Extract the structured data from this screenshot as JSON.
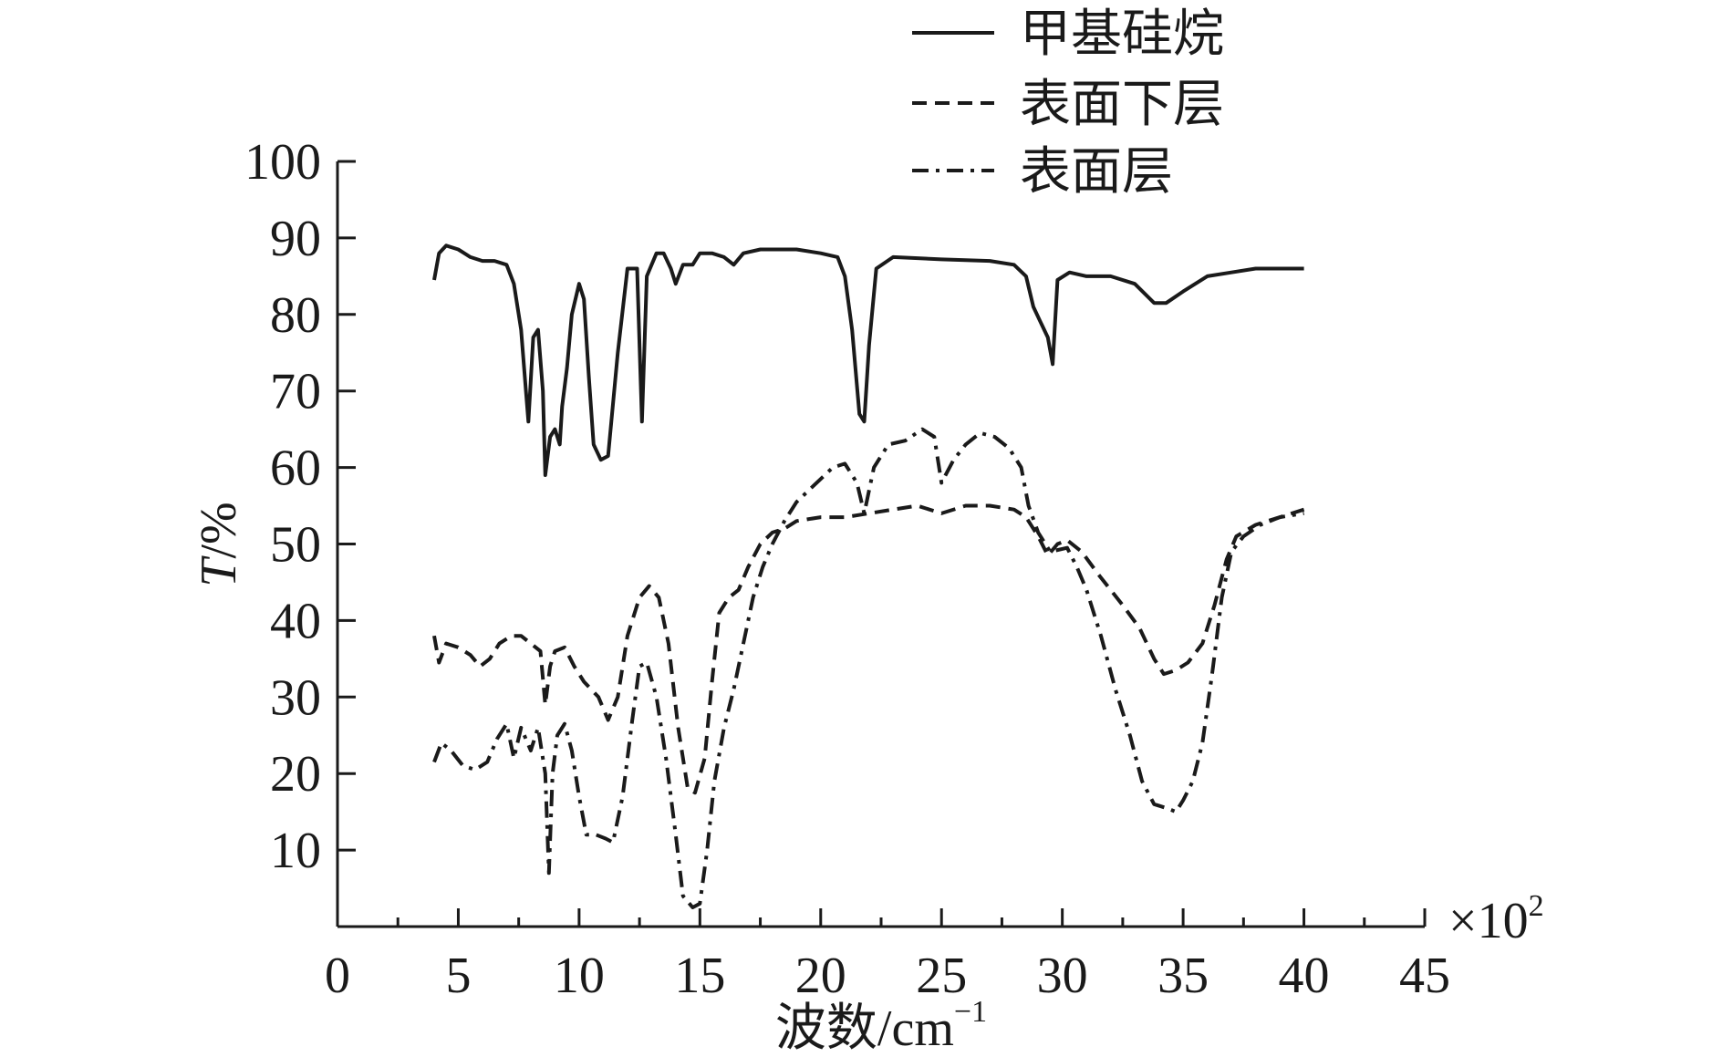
{
  "chart_data": {
    "type": "line",
    "title": "",
    "xlabel": "波数/cm",
    "xlabel_sup": "−1",
    "x_multiplier": "×10",
    "x_multiplier_sup": "2",
    "ylabel_italic": "T",
    "ylabel_rest": "/%",
    "xlim": [
      0,
      45
    ],
    "ylim": [
      0,
      100
    ],
    "xticks": [
      0,
      5,
      10,
      15,
      20,
      25,
      30,
      35,
      40,
      45
    ],
    "yticks": [
      10,
      20,
      30,
      40,
      50,
      60,
      70,
      80,
      90,
      100
    ],
    "grid": false,
    "legend_position": "top-right",
    "series": [
      {
        "name": "甲基硅烷",
        "style": "solid",
        "color": "#1a1a1a",
        "points": [
          [
            4.0,
            84.5
          ],
          [
            4.2,
            88.0
          ],
          [
            4.5,
            89.0
          ],
          [
            5.0,
            88.5
          ],
          [
            5.5,
            87.5
          ],
          [
            6.0,
            87.0
          ],
          [
            6.5,
            87.0
          ],
          [
            7.0,
            86.5
          ],
          [
            7.3,
            84.0
          ],
          [
            7.6,
            78.0
          ],
          [
            7.8,
            70.0
          ],
          [
            7.9,
            66.0
          ],
          [
            8.1,
            77.0
          ],
          [
            8.3,
            78.0
          ],
          [
            8.5,
            70.0
          ],
          [
            8.6,
            59.0
          ],
          [
            8.8,
            64.0
          ],
          [
            9.0,
            65.0
          ],
          [
            9.2,
            63.0
          ],
          [
            9.3,
            68.0
          ],
          [
            9.5,
            73.0
          ],
          [
            9.7,
            80.0
          ],
          [
            10.0,
            84.0
          ],
          [
            10.2,
            82.0
          ],
          [
            10.4,
            72.0
          ],
          [
            10.6,
            63.0
          ],
          [
            10.9,
            61.0
          ],
          [
            11.2,
            61.5
          ],
          [
            11.6,
            75.0
          ],
          [
            12.0,
            86.0
          ],
          [
            12.4,
            86.0
          ],
          [
            12.6,
            66.0
          ],
          [
            12.8,
            85.0
          ],
          [
            13.2,
            88.0
          ],
          [
            13.5,
            88.0
          ],
          [
            13.8,
            86.0
          ],
          [
            14.0,
            84.0
          ],
          [
            14.3,
            86.5
          ],
          [
            14.7,
            86.5
          ],
          [
            15.0,
            88.0
          ],
          [
            15.5,
            88.0
          ],
          [
            16.0,
            87.5
          ],
          [
            16.4,
            86.5
          ],
          [
            16.8,
            88.0
          ],
          [
            17.5,
            88.5
          ],
          [
            19.0,
            88.5
          ],
          [
            20.0,
            88.0
          ],
          [
            20.7,
            87.5
          ],
          [
            21.0,
            85.0
          ],
          [
            21.3,
            78.0
          ],
          [
            21.6,
            67.0
          ],
          [
            21.8,
            66.0
          ],
          [
            22.0,
            76.0
          ],
          [
            22.3,
            86.0
          ],
          [
            23.0,
            87.5
          ],
          [
            25.0,
            87.2
          ],
          [
            27.0,
            87.0
          ],
          [
            28.0,
            86.5
          ],
          [
            28.5,
            85.0
          ],
          [
            28.8,
            81.0
          ],
          [
            29.1,
            79.0
          ],
          [
            29.4,
            77.0
          ],
          [
            29.6,
            73.5
          ],
          [
            29.8,
            84.5
          ],
          [
            30.3,
            85.5
          ],
          [
            31.0,
            85.0
          ],
          [
            32.0,
            85.0
          ],
          [
            33.0,
            84.0
          ],
          [
            33.8,
            81.5
          ],
          [
            34.3,
            81.5
          ],
          [
            35.0,
            83.0
          ],
          [
            36.0,
            85.0
          ],
          [
            37.0,
            85.5
          ],
          [
            38.0,
            86.0
          ],
          [
            40.0,
            86.0
          ]
        ]
      },
      {
        "name": "表面下层",
        "style": "dashed",
        "color": "#1a1a1a",
        "points": [
          [
            4.0,
            38.0
          ],
          [
            4.2,
            34.5
          ],
          [
            4.5,
            37.0
          ],
          [
            5.0,
            36.5
          ],
          [
            5.5,
            35.5
          ],
          [
            5.9,
            34.0
          ],
          [
            6.3,
            35.0
          ],
          [
            6.7,
            37.0
          ],
          [
            7.2,
            38.0
          ],
          [
            7.6,
            38.0
          ],
          [
            8.0,
            37.0
          ],
          [
            8.4,
            36.0
          ],
          [
            8.6,
            29.0
          ],
          [
            8.8,
            34.0
          ],
          [
            9.0,
            36.0
          ],
          [
            9.4,
            36.5
          ],
          [
            9.8,
            34.0
          ],
          [
            10.2,
            32.0
          ],
          [
            10.8,
            30.0
          ],
          [
            11.2,
            27.0
          ],
          [
            11.6,
            30.0
          ],
          [
            12.0,
            38.0
          ],
          [
            12.5,
            43.0
          ],
          [
            12.9,
            44.5
          ],
          [
            13.3,
            43.0
          ],
          [
            13.7,
            37.0
          ],
          [
            14.1,
            26.0
          ],
          [
            14.5,
            18.0
          ],
          [
            14.8,
            17.5
          ],
          [
            15.2,
            22.0
          ],
          [
            15.5,
            32.0
          ],
          [
            15.8,
            41.0
          ],
          [
            16.2,
            43.0
          ],
          [
            16.6,
            44.0
          ],
          [
            17.0,
            47.0
          ],
          [
            17.5,
            50.0
          ],
          [
            18.0,
            51.5
          ],
          [
            18.5,
            52.0
          ],
          [
            19.0,
            53.0
          ],
          [
            20.0,
            53.5
          ],
          [
            21.0,
            53.5
          ],
          [
            22.0,
            54.0
          ],
          [
            23.0,
            54.5
          ],
          [
            24.0,
            55.0
          ],
          [
            25.0,
            54.0
          ],
          [
            26.0,
            55.0
          ],
          [
            27.0,
            55.0
          ],
          [
            28.0,
            54.5
          ],
          [
            28.5,
            53.5
          ],
          [
            29.0,
            51.0
          ],
          [
            29.4,
            48.5
          ],
          [
            29.8,
            50.0
          ],
          [
            30.2,
            50.5
          ],
          [
            30.8,
            49.0
          ],
          [
            31.5,
            46.0
          ],
          [
            32.5,
            42.0
          ],
          [
            33.2,
            39.0
          ],
          [
            33.8,
            35.0
          ],
          [
            34.2,
            33.0
          ],
          [
            34.7,
            33.5
          ],
          [
            35.2,
            34.5
          ],
          [
            35.8,
            37.0
          ],
          [
            36.3,
            42.0
          ],
          [
            36.8,
            48.0
          ],
          [
            37.2,
            51.0
          ],
          [
            38.0,
            52.5
          ],
          [
            39.0,
            53.5
          ],
          [
            40.0,
            54.5
          ]
        ]
      },
      {
        "name": "表面层",
        "style": "dashdot",
        "color": "#1a1a1a",
        "points": [
          [
            4.0,
            21.5
          ],
          [
            4.3,
            24.0
          ],
          [
            4.7,
            23.0
          ],
          [
            5.2,
            21.0
          ],
          [
            5.7,
            20.5
          ],
          [
            6.2,
            21.5
          ],
          [
            6.6,
            24.5
          ],
          [
            7.0,
            26.5
          ],
          [
            7.3,
            22.0
          ],
          [
            7.6,
            26.0
          ],
          [
            8.0,
            23.0
          ],
          [
            8.3,
            26.0
          ],
          [
            8.6,
            20.0
          ],
          [
            8.75,
            7.0
          ],
          [
            8.9,
            20.0
          ],
          [
            9.1,
            25.0
          ],
          [
            9.4,
            26.5
          ],
          [
            9.7,
            23.0
          ],
          [
            10.0,
            17.0
          ],
          [
            10.3,
            12.0
          ],
          [
            10.7,
            12.0
          ],
          [
            11.1,
            11.5
          ],
          [
            11.4,
            11.0
          ],
          [
            11.8,
            17.0
          ],
          [
            12.2,
            27.0
          ],
          [
            12.5,
            34.0
          ],
          [
            12.8,
            34.5
          ],
          [
            13.2,
            30.0
          ],
          [
            13.6,
            22.0
          ],
          [
            14.0,
            12.0
          ],
          [
            14.3,
            4.0
          ],
          [
            14.7,
            2.5
          ],
          [
            15.0,
            3.0
          ],
          [
            15.3,
            10.0
          ],
          [
            15.6,
            19.0
          ],
          [
            16.0,
            26.0
          ],
          [
            16.4,
            31.0
          ],
          [
            16.8,
            37.0
          ],
          [
            17.2,
            43.0
          ],
          [
            17.6,
            47.0
          ],
          [
            18.0,
            50.0
          ],
          [
            18.5,
            53.0
          ],
          [
            19.0,
            55.5
          ],
          [
            19.5,
            57.0
          ],
          [
            20.0,
            58.5
          ],
          [
            20.5,
            60.0
          ],
          [
            21.0,
            60.5
          ],
          [
            21.5,
            58.0
          ],
          [
            21.8,
            54.0
          ],
          [
            22.2,
            60.0
          ],
          [
            22.8,
            63.0
          ],
          [
            23.5,
            63.5
          ],
          [
            24.2,
            65.0
          ],
          [
            24.7,
            64.0
          ],
          [
            25.0,
            58.0
          ],
          [
            25.5,
            61.0
          ],
          [
            26.0,
            63.0
          ],
          [
            26.6,
            64.5
          ],
          [
            27.2,
            64.0
          ],
          [
            27.8,
            62.5
          ],
          [
            28.3,
            60.0
          ],
          [
            28.6,
            55.0
          ],
          [
            29.0,
            51.5
          ],
          [
            29.5,
            49.0
          ],
          [
            30.2,
            49.5
          ],
          [
            30.6,
            47.0
          ],
          [
            31.0,
            44.0
          ],
          [
            31.6,
            38.0
          ],
          [
            32.2,
            31.0
          ],
          [
            32.8,
            25.0
          ],
          [
            33.3,
            19.0
          ],
          [
            33.8,
            16.0
          ],
          [
            34.3,
            15.5
          ],
          [
            34.7,
            15.0
          ],
          [
            35.0,
            16.5
          ],
          [
            35.4,
            19.0
          ],
          [
            35.8,
            24.0
          ],
          [
            36.2,
            33.0
          ],
          [
            36.6,
            43.0
          ],
          [
            37.0,
            49.0
          ],
          [
            37.5,
            51.0
          ],
          [
            38.2,
            52.5
          ],
          [
            39.0,
            53.5
          ],
          [
            40.0,
            54.0
          ]
        ]
      }
    ]
  }
}
